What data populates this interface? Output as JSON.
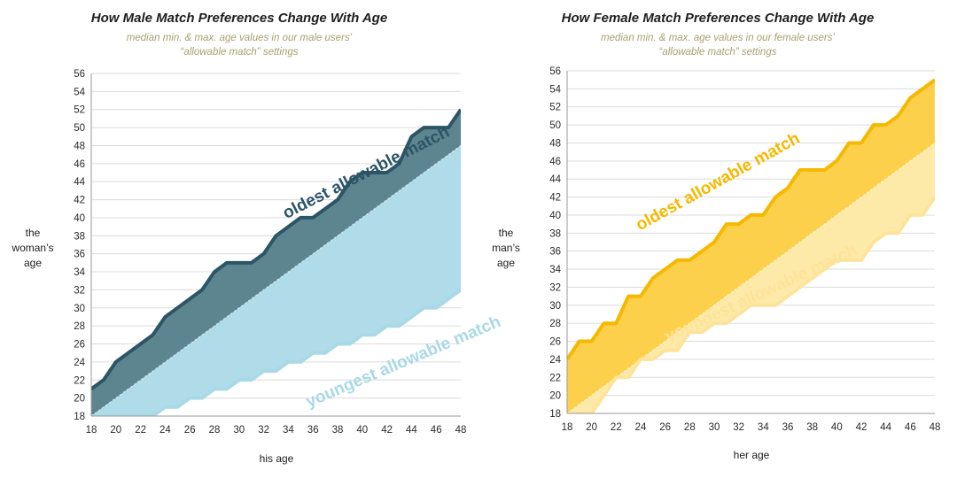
{
  "chart_data": [
    {
      "type": "area",
      "title": "How Male Match Preferences Change With Age",
      "subtitle_line1": "median min. & max. age values in our male users’",
      "subtitle_line2": "“allowable match” settings",
      "xlabel": "his age",
      "ylabel": [
        "the",
        "woman’s",
        "age"
      ],
      "xlim": [
        18,
        48
      ],
      "ylim": [
        18,
        56
      ],
      "x": [
        18,
        19,
        20,
        21,
        22,
        23,
        24,
        25,
        26,
        27,
        28,
        29,
        30,
        31,
        32,
        33,
        34,
        35,
        36,
        37,
        38,
        39,
        40,
        41,
        42,
        43,
        44,
        45,
        46,
        47,
        48
      ],
      "x_ticks": [
        18,
        20,
        22,
        24,
        26,
        28,
        30,
        32,
        34,
        36,
        38,
        40,
        42,
        44,
        46,
        48
      ],
      "y_ticks": [
        18,
        20,
        22,
        24,
        26,
        28,
        30,
        32,
        34,
        36,
        38,
        40,
        42,
        44,
        46,
        48,
        50,
        52,
        54,
        56
      ],
      "series": [
        {
          "name": "oldest allowable match",
          "values": [
            21,
            22,
            24,
            25,
            26,
            27,
            29,
            30,
            31,
            32,
            34,
            35,
            35,
            35,
            36,
            38,
            39,
            40,
            40,
            41,
            42,
            44,
            45,
            45,
            45,
            46,
            49,
            50,
            50,
            50,
            52
          ]
        },
        {
          "name": "youngest allowable match",
          "values": [
            18,
            18,
            18,
            18,
            18,
            18,
            19,
            19,
            20,
            20,
            21,
            21,
            22,
            22,
            23,
            23,
            24,
            24,
            25,
            25,
            26,
            26,
            27,
            27,
            28,
            28,
            29,
            30,
            30,
            31,
            32
          ]
        }
      ],
      "reference_line": "x = y",
      "annotations": [
        "oldest allowable match",
        "youngest allowable match"
      ],
      "colors": {
        "upper": "#5d8590",
        "upper_line": "#2c5565",
        "lower": "#b0dce9",
        "lower_line": "#a9d9e6",
        "upper_text": "#2c5565",
        "lower_text": "#a9d9e6"
      }
    },
    {
      "type": "area",
      "title": "How Female Match Preferences Change With Age",
      "subtitle_line1": "median min. & max. age values in our female users’",
      "subtitle_line2": "“allowable match” settings",
      "xlabel": "her age",
      "ylabel": [
        "the",
        "man’s",
        "age"
      ],
      "xlim": [
        18,
        48
      ],
      "ylim": [
        18,
        56
      ],
      "x": [
        18,
        19,
        20,
        21,
        22,
        23,
        24,
        25,
        26,
        27,
        28,
        29,
        30,
        31,
        32,
        33,
        34,
        35,
        36,
        37,
        38,
        39,
        40,
        41,
        42,
        43,
        44,
        45,
        46,
        47,
        48
      ],
      "x_ticks": [
        18,
        20,
        22,
        24,
        26,
        28,
        30,
        32,
        34,
        36,
        38,
        40,
        42,
        44,
        46,
        48
      ],
      "y_ticks": [
        18,
        20,
        22,
        24,
        26,
        28,
        30,
        32,
        34,
        36,
        38,
        40,
        42,
        44,
        46,
        48,
        50,
        52,
        54,
        56
      ],
      "series": [
        {
          "name": "oldest allowable match",
          "values": [
            24,
            26,
            26,
            28,
            28,
            31,
            31,
            33,
            34,
            35,
            35,
            36,
            37,
            39,
            39,
            40,
            40,
            42,
            43,
            45,
            45,
            45,
            46,
            48,
            48,
            50,
            50,
            51,
            53,
            54,
            55
          ]
        },
        {
          "name": "youngest allowable match",
          "values": [
            18,
            18,
            18,
            20,
            22,
            22,
            24,
            24,
            25,
            25,
            27,
            27,
            28,
            28,
            29,
            30,
            30,
            30,
            31,
            32,
            33,
            34,
            35,
            35,
            35,
            37,
            38,
            38,
            40,
            40,
            42
          ]
        }
      ],
      "reference_line": "x = y",
      "annotations": [
        "oldest allowable match",
        "youngest allowable match"
      ],
      "colors": {
        "upper": "#fdd04c",
        "upper_line": "#f6b800",
        "lower": "#feeaa8",
        "lower_line": "#fde49a",
        "upper_text": "#f6b800",
        "lower_text": "#fde49a"
      }
    }
  ]
}
